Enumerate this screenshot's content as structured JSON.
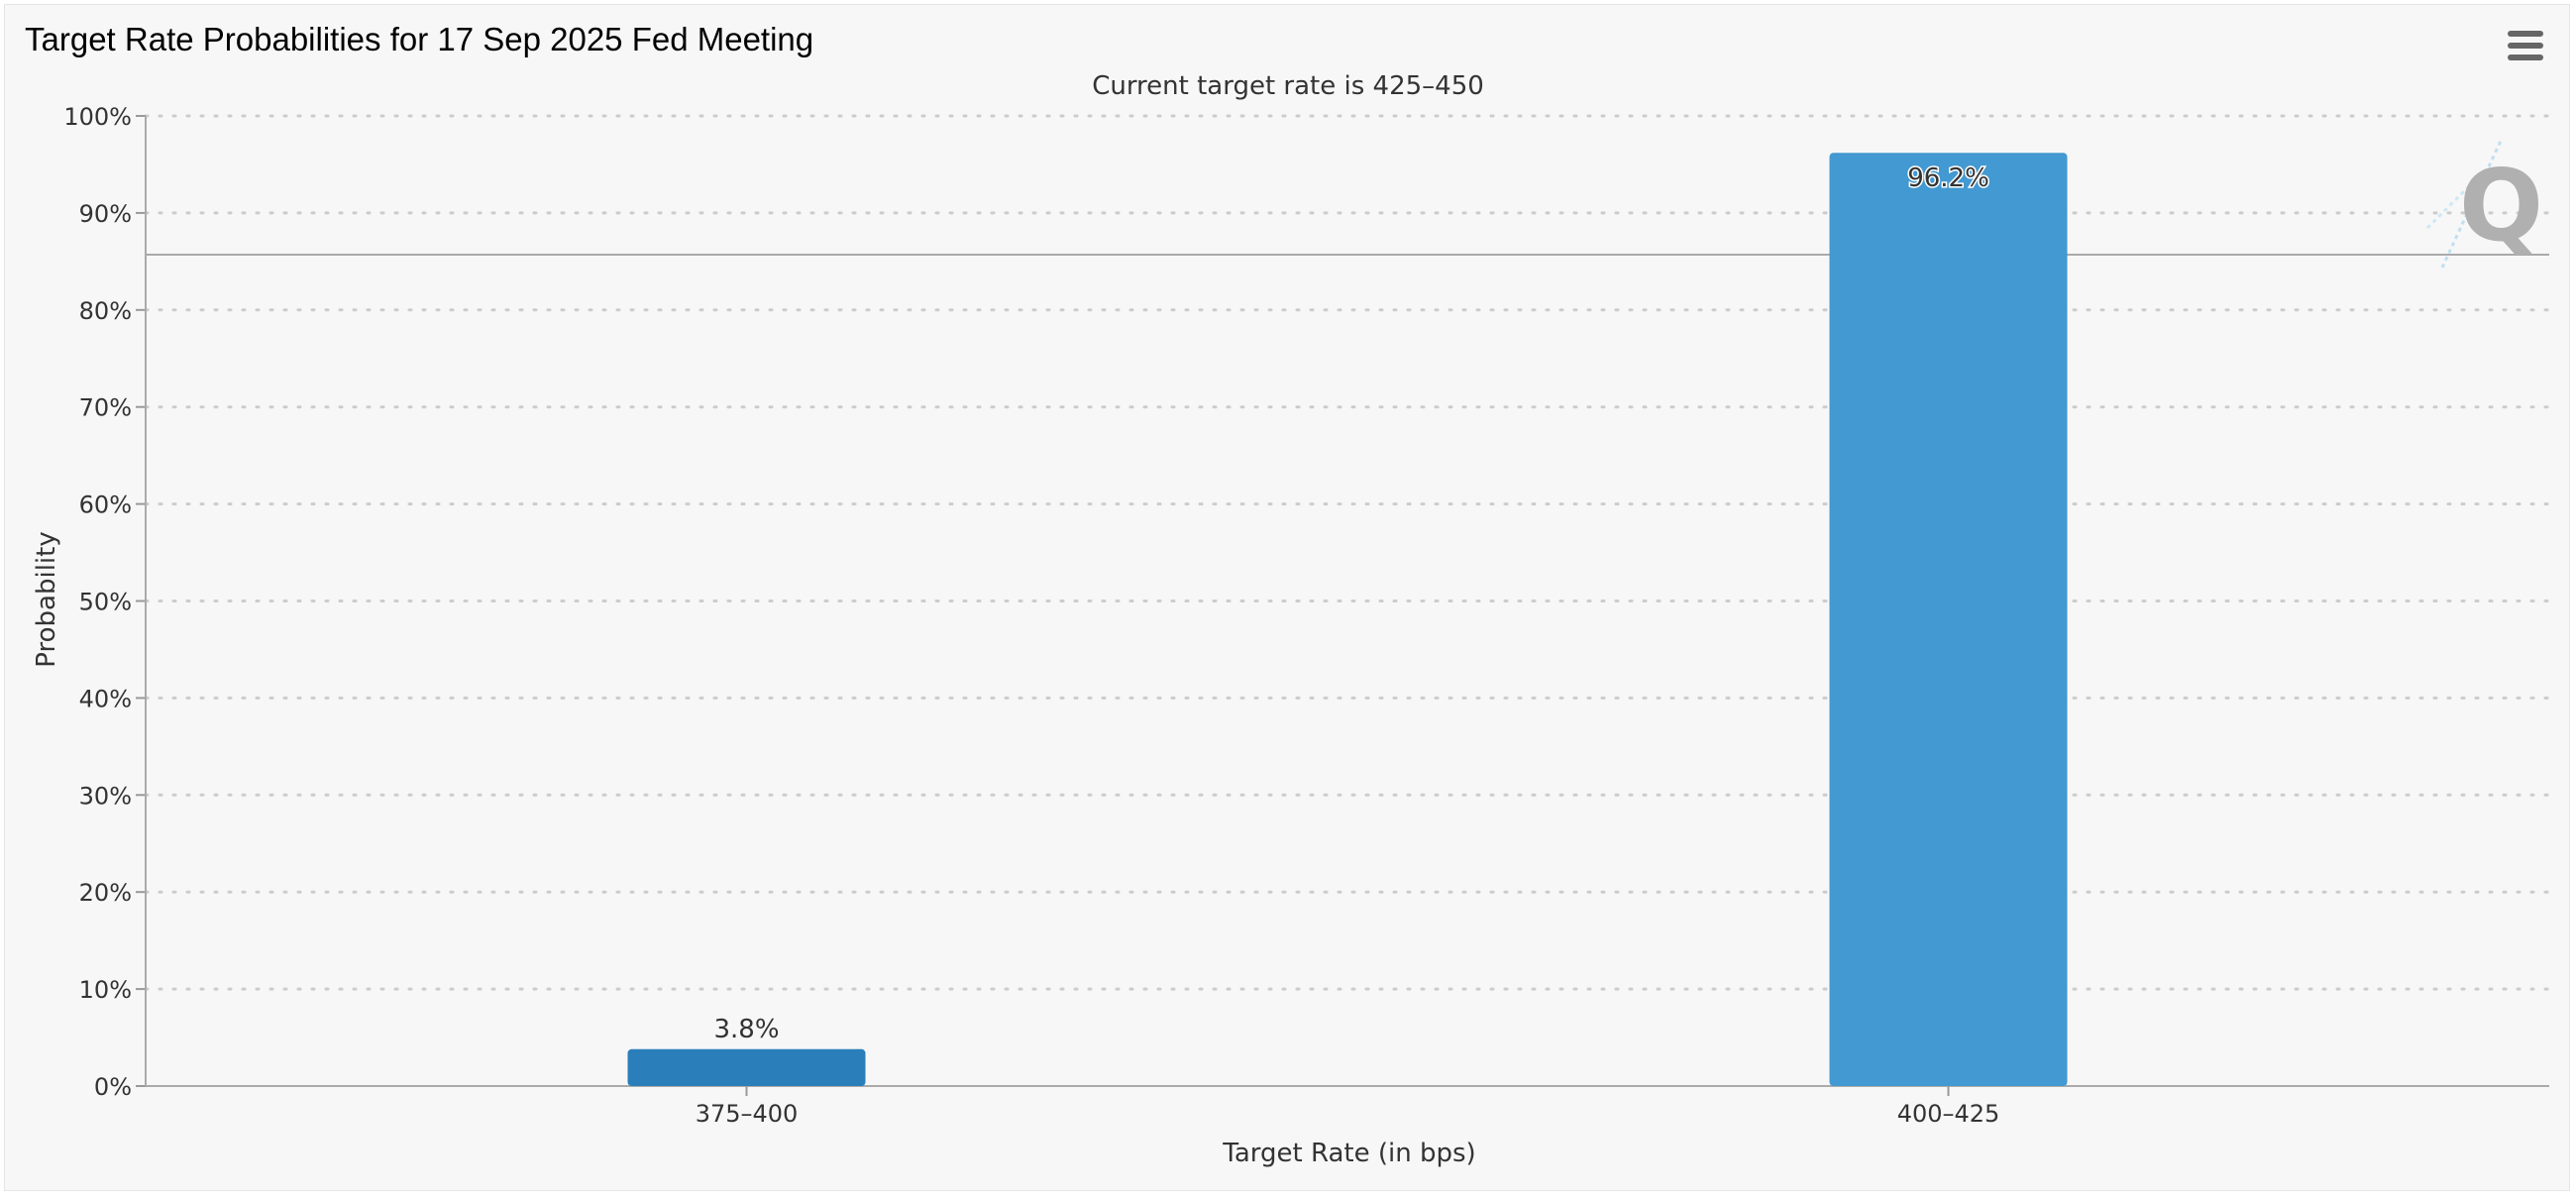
{
  "chart_data": {
    "type": "bar",
    "title": "Target Rate Probabilities for 17 Sep 2025 Fed Meeting",
    "subtitle": "Current target rate is 425–450",
    "xlabel": "Target Rate (in bps)",
    "ylabel": "Probability",
    "categories": [
      "375–400",
      "400–425"
    ],
    "values": [
      3.8,
      96.2
    ],
    "data_labels": [
      "3.8%",
      "96.2%"
    ],
    "ylim": [
      0,
      100
    ],
    "yticks": [
      0,
      10,
      20,
      30,
      40,
      50,
      60,
      70,
      80,
      90,
      100
    ],
    "ytick_labels": [
      "0%",
      "10%",
      "20%",
      "30%",
      "40%",
      "50%",
      "60%",
      "70%",
      "80%",
      "90%",
      "100%"
    ],
    "reference_line": 85.7,
    "grid": true,
    "legend": "none",
    "colors": {
      "bar_1": "#2a7fba",
      "bar_2": "#4399d1",
      "subtitle": "#1f3a60",
      "grid": "#cccccc"
    }
  },
  "toolbar": {
    "menu_icon": "hamburger-menu-icon"
  },
  "watermark": {
    "icon": "quikstrike-q-logo-icon",
    "letter": "Q"
  }
}
